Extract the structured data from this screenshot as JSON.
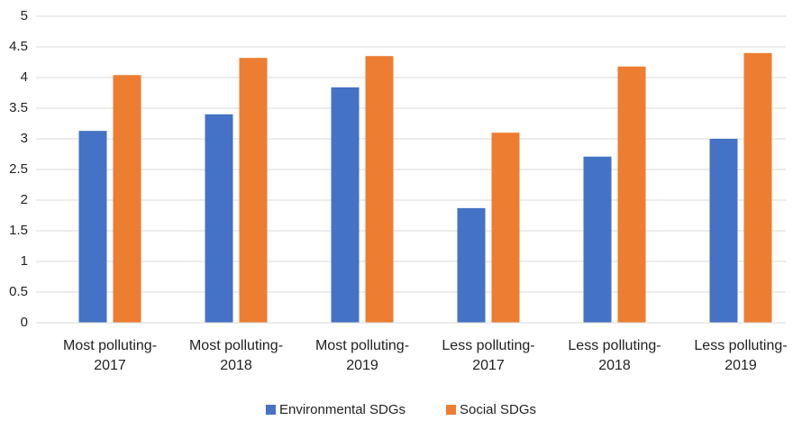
{
  "chart_data": {
    "type": "bar",
    "categories": [
      "Most polluting-2017",
      "Most polluting-2018",
      "Most polluting-2019",
      "Less polluting-2017",
      "Less polluting-2018",
      "Less polluting-2019"
    ],
    "series": [
      {
        "name": "Environmental SDGs",
        "color": "#4472c4",
        "values": [
          3.13,
          3.4,
          3.84,
          1.87,
          2.71,
          3.0
        ]
      },
      {
        "name": "Social SDGs",
        "color": "#ed7d31",
        "values": [
          4.04,
          4.32,
          4.35,
          3.1,
          4.18,
          4.4
        ]
      }
    ],
    "ylim": [
      0,
      5
    ],
    "yticks": [
      0,
      0.5,
      1,
      1.5,
      2,
      2.5,
      3,
      3.5,
      4,
      4.5,
      5
    ],
    "grid": true,
    "legend": "bottom"
  }
}
